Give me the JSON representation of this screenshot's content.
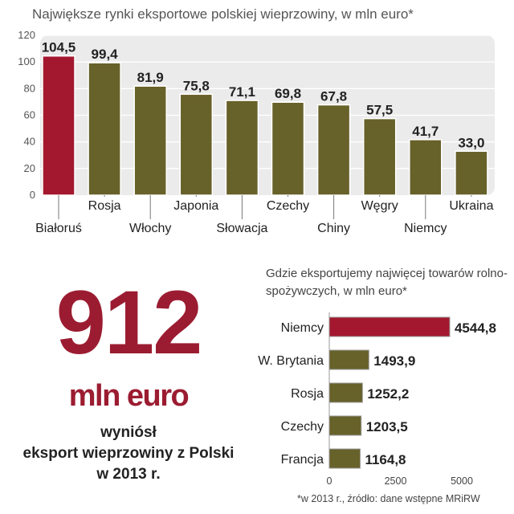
{
  "colors": {
    "highlight": "#a3182f",
    "bar": "#67612a",
    "plot_bg": "#ebebeb",
    "gridline": "#ffffff",
    "label": "#222222",
    "big_number": "#9b1c31"
  },
  "chart_data": [
    {
      "type": "bar",
      "title": "Największe rynki eksportowe polskiej wieprzowiny, w mln euro*",
      "categories": [
        "Białoruś",
        "Rosja",
        "Włochy",
        "Japonia",
        "Słowacja",
        "Czechy",
        "Chiny",
        "Węgry",
        "Niemcy",
        "Ukraina"
      ],
      "values": [
        104.5,
        99.4,
        81.9,
        75.8,
        71.1,
        69.8,
        67.8,
        57.5,
        41.7,
        33.0
      ],
      "data_labels": [
        "104,5",
        "99,4",
        "81,9",
        "75,8",
        "71,1",
        "69,8",
        "67,8",
        "57,5",
        "41,7",
        "33,0"
      ],
      "highlighted_index": 0,
      "ylim": [
        0,
        120
      ],
      "yticks": [
        "0",
        "20",
        "40",
        "60",
        "80",
        "100",
        "120"
      ],
      "grid": true
    },
    {
      "type": "bar",
      "orientation": "horizontal",
      "title": "Gdzie eksportujemy najwięcej towarów rolno-spożywczych, w mln euro*",
      "categories": [
        "Niemcy",
        "W. Brytania",
        "Rosja",
        "Czechy",
        "Francja"
      ],
      "values": [
        4544.8,
        1493.9,
        1252.2,
        1203.5,
        1164.8
      ],
      "data_labels": [
        "4544,8",
        "1493,9",
        "1252,2",
        "1203,5",
        "1164,8"
      ],
      "highlighted_index": 0,
      "xlim": [
        0,
        5000
      ],
      "xticks": [
        "0",
        "2500",
        "5000"
      ]
    }
  ],
  "headline": {
    "number": "912",
    "unit": "mln euro",
    "caption_lines": [
      "wyniósł",
      "eksport wieprzowiny z Polski",
      "w 2013 r."
    ]
  },
  "footnote": "*w 2013 r., źródło: dane wstępne MRiRW"
}
